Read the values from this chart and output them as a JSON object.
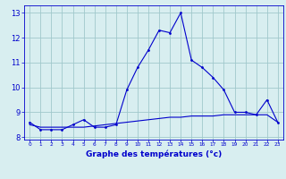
{
  "xlabel": "Graphe des températures (°c)",
  "hours": [
    0,
    1,
    2,
    3,
    4,
    5,
    6,
    7,
    8,
    9,
    10,
    11,
    12,
    13,
    14,
    15,
    16,
    17,
    18,
    19,
    20,
    21,
    22,
    23
  ],
  "temp_curve": [
    8.6,
    8.3,
    8.3,
    8.3,
    8.5,
    8.7,
    8.4,
    8.4,
    8.5,
    9.9,
    10.8,
    11.5,
    12.3,
    12.2,
    13.0,
    11.1,
    10.8,
    10.4,
    9.9,
    9.0,
    9.0,
    8.9,
    9.5,
    8.6
  ],
  "flat_curve": [
    8.5,
    8.4,
    8.4,
    8.4,
    8.4,
    8.4,
    8.45,
    8.5,
    8.55,
    8.6,
    8.65,
    8.7,
    8.75,
    8.8,
    8.8,
    8.85,
    8.85,
    8.85,
    8.9,
    8.9,
    8.9,
    8.9,
    8.9,
    8.6
  ],
  "line_color": "#0000cc",
  "bg_color": "#d8eef0",
  "grid_color": "#a0c8cc",
  "ylim": [
    7.9,
    13.3
  ],
  "yticks": [
    8,
    9,
    10,
    11,
    12,
    13
  ],
  "xlim": [
    -0.5,
    23.5
  ]
}
